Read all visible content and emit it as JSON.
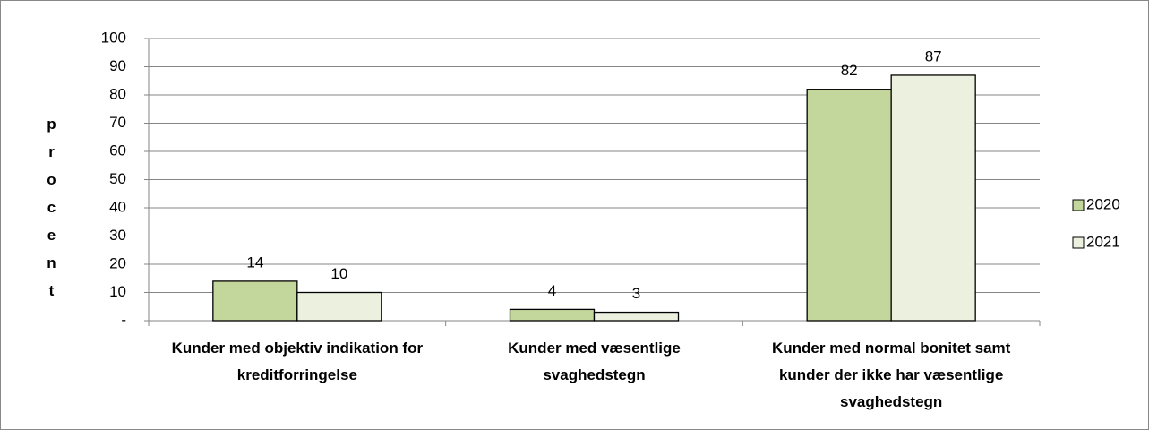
{
  "chart_data": {
    "type": "bar",
    "y_label": "procent",
    "categories": [
      "Kunder med objektiv indikation for kreditforringelse",
      "Kunder med væsentlige svaghedstegn",
      "Kunder med normal bonitet samt kunder der ikke har væsentlige svaghedstegn"
    ],
    "series": [
      {
        "name": "2020",
        "color": "#c3d69b",
        "values": [
          14,
          4,
          82
        ]
      },
      {
        "name": "2021",
        "color": "#ebf1de",
        "values": [
          10,
          3,
          87
        ]
      }
    ],
    "ylim": [
      0,
      100
    ],
    "yticks": [
      {
        "value": 0,
        "label": "-"
      },
      10,
      20,
      30,
      40,
      50,
      60,
      70,
      80,
      90,
      100
    ],
    "grid": true,
    "legend": "right"
  }
}
